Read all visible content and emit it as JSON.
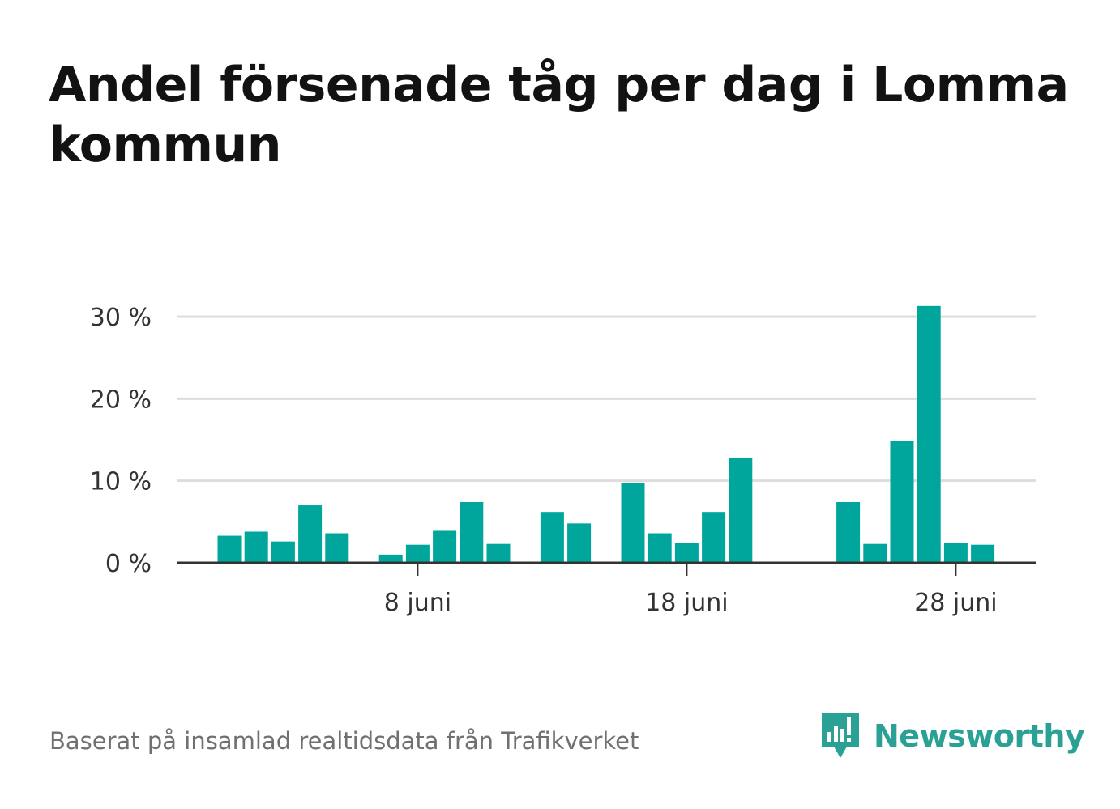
{
  "title": "Andel försenade tåg per dag i Lomma kommun",
  "source": "Baserat på insamlad realtidsdata från Trafikverket",
  "brand": {
    "name": "Newsworthy",
    "icon": "bar-chart-speech-bubble-icon"
  },
  "colors": {
    "bar": "#00a69c",
    "grid": "#dddddd",
    "axis": "#333333",
    "brand": "#2aa194"
  },
  "chart_data": {
    "type": "bar",
    "title": "Andel försenade tåg per dag i Lomma kommun",
    "xlabel": "",
    "ylabel": "",
    "ylim": [
      0,
      30
    ],
    "grid": true,
    "legend": "none",
    "y_ticks": [
      {
        "value": 0,
        "label": "0 %"
      },
      {
        "value": 10,
        "label": "10 %"
      },
      {
        "value": 20,
        "label": "20 %"
      },
      {
        "value": 30,
        "label": "30 %"
      }
    ],
    "x_ticks": [
      {
        "day": 8,
        "label": "8 juni"
      },
      {
        "day": 18,
        "label": "18 juni"
      },
      {
        "day": 28,
        "label": "28 juni"
      }
    ],
    "categories": [
      "1 juni",
      "2 juni",
      "3 juni",
      "4 juni",
      "5 juni",
      "6 juni",
      "7 juni",
      "8 juni",
      "9 juni",
      "10 juni",
      "11 juni",
      "12 juni",
      "13 juni",
      "14 juni",
      "15 juni",
      "16 juni",
      "17 juni",
      "18 juni",
      "19 juni",
      "20 juni",
      "21 juni",
      "22 juni",
      "23 juni",
      "24 juni",
      "25 juni",
      "26 juni",
      "27 juni",
      "28 juni",
      "29 juni",
      "30 juni"
    ],
    "days": [
      1,
      2,
      3,
      4,
      5,
      6,
      7,
      8,
      9,
      10,
      11,
      12,
      13,
      14,
      15,
      16,
      17,
      18,
      19,
      20,
      21,
      22,
      23,
      24,
      25,
      26,
      27,
      28,
      29,
      30
    ],
    "values": [
      3.3,
      3.8,
      2.6,
      7.0,
      3.6,
      null,
      1.0,
      2.2,
      3.9,
      7.4,
      2.3,
      null,
      6.2,
      4.8,
      null,
      9.7,
      3.6,
      2.4,
      6.2,
      12.8,
      null,
      null,
      null,
      7.4,
      2.3,
      14.9,
      31.3,
      2.4,
      2.2,
      null
    ]
  }
}
